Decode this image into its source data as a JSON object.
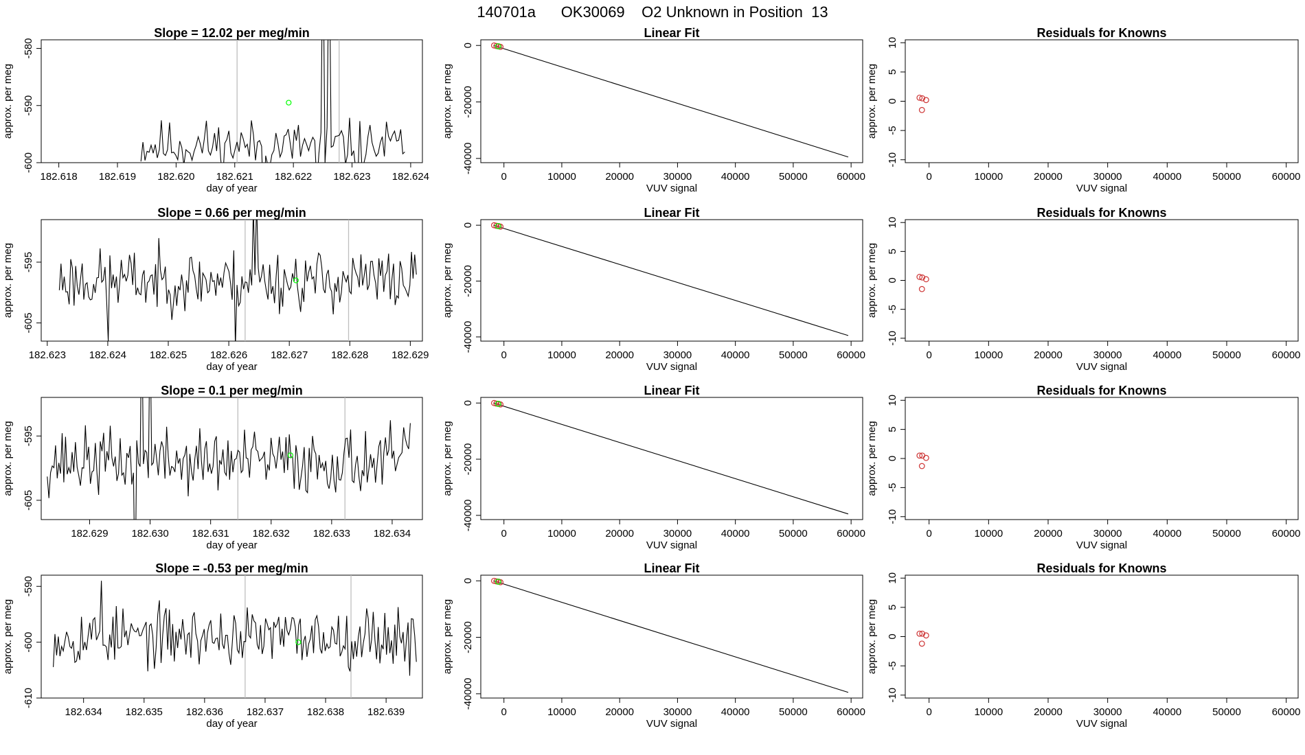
{
  "page_title": "140701a      OK30069    O2 Unknown in Position  13",
  "colors": {
    "trace": "#000000",
    "marker_line": "#bebebe",
    "known_point": "#cd3333",
    "unknown_point": "#00ff00",
    "fit_line": "#000000"
  },
  "chart_data": [
    {
      "type": "line",
      "row": 0,
      "title": "Slope =  12.02  per meg/min",
      "xlabel": "day of year",
      "ylabel": "approx. per meg",
      "xlim": [
        182.6177,
        182.6242
      ],
      "ylim": [
        -600,
        -578.5
      ],
      "xticks": [
        182.618,
        182.619,
        182.62,
        182.621,
        182.622,
        182.623,
        182.624
      ],
      "xtick_labels": [
        "182.618",
        "182.619",
        "182.620",
        "182.621",
        "182.622",
        "182.623",
        "182.624"
      ],
      "yticks": [
        -600,
        -590,
        -580
      ],
      "ytick_labels": [
        "-600",
        "-590",
        "-580"
      ],
      "x_start": 182.6194,
      "x_end": 182.6239,
      "n_points": 130,
      "base": -597,
      "noise": 2.2,
      "seed": 11,
      "spikes": [
        {
          "x": 182.6215,
          "y": -609
        },
        {
          "x": 182.6224,
          "y": -604
        },
        {
          "x": 182.6225,
          "y": -560
        },
        {
          "x": 182.62255,
          "y": -600
        },
        {
          "x": 182.6226,
          "y": -560
        },
        {
          "x": 182.6231,
          "y": -603
        }
      ],
      "marker_lines": [
        182.62104,
        182.62278
      ],
      "unknown_point": {
        "x": 182.62192,
        "y": -589.5
      }
    },
    {
      "type": "line",
      "row": 1,
      "title": "Slope =  0.66  per meg/min",
      "xlabel": "day of year",
      "ylabel": "approx. per meg",
      "xlim": [
        182.6229,
        182.6292
      ],
      "ylim": [
        -608,
        -588
      ],
      "xticks": [
        182.623,
        182.624,
        182.625,
        182.626,
        182.627,
        182.628,
        182.629
      ],
      "xtick_labels": [
        "182.623",
        "182.624",
        "182.625",
        "182.626",
        "182.627",
        "182.628",
        "182.629"
      ],
      "yticks": [
        -605,
        -595
      ],
      "ytick_labels": [
        "-605",
        "-595"
      ],
      "x_start": 182.6232,
      "x_end": 182.6291,
      "n_points": 220,
      "base": -598,
      "noise": 2.5,
      "seed": 23,
      "spikes": [
        {
          "x": 182.624,
          "y": -608
        },
        {
          "x": 182.6261,
          "y": -609
        },
        {
          "x": 182.6264,
          "y": -586
        },
        {
          "x": 182.62645,
          "y": -585
        }
      ],
      "marker_lines": [
        182.62627,
        182.62798
      ],
      "unknown_point": {
        "x": 182.62711,
        "y": -598
      }
    },
    {
      "type": "line",
      "row": 2,
      "title": "Slope =  0.1  per meg/min",
      "xlabel": "day of year",
      "ylabel": "approx. per meg",
      "xlim": [
        182.6282,
        182.6345
      ],
      "ylim": [
        -608,
        -589
      ],
      "xticks": [
        182.629,
        182.63,
        182.631,
        182.632,
        182.633,
        182.634
      ],
      "xtick_labels": [
        "182.629",
        "182.630",
        "182.631",
        "182.632",
        "182.633",
        "182.634"
      ],
      "yticks": [
        -605,
        -595
      ],
      "ytick_labels": [
        "-605",
        "-595"
      ],
      "x_start": 182.6283,
      "x_end": 182.6343,
      "n_points": 220,
      "base": -599,
      "noise": 2.5,
      "seed": 37,
      "spikes": [
        {
          "x": 182.62975,
          "y": -620
        },
        {
          "x": 182.62985,
          "y": -575
        },
        {
          "x": 182.63,
          "y": -577
        },
        {
          "x": 182.6343,
          "y": -593
        }
      ],
      "marker_lines": [
        182.63145,
        182.63322
      ],
      "unknown_point": {
        "x": 182.63232,
        "y": -598
      }
    },
    {
      "type": "line",
      "row": 3,
      "title": "Slope =  -0.53  per meg/min",
      "xlabel": "day of year",
      "ylabel": "approx. per meg",
      "xlim": [
        182.6333,
        182.6396
      ],
      "ylim": [
        -610,
        -588
      ],
      "xticks": [
        182.634,
        182.635,
        182.636,
        182.637,
        182.638,
        182.639
      ],
      "xtick_labels": [
        "182.634",
        "182.635",
        "182.636",
        "182.637",
        "182.638",
        "182.639"
      ],
      "yticks": [
        -610,
        -600,
        -590
      ],
      "ytick_labels": [
        "-610",
        "-600",
        "-590"
      ],
      "x_start": 182.6335,
      "x_end": 182.6395,
      "n_points": 220,
      "base": -599,
      "noise": 2.6,
      "seed": 53,
      "spikes": [
        {
          "x": 182.6343,
          "y": -589
        },
        {
          "x": 182.6394,
          "y": -606
        }
      ],
      "marker_lines": [
        182.63667,
        182.63842
      ],
      "unknown_point": {
        "x": 182.63755,
        "y": -600
      }
    },
    {
      "type": "scatter",
      "row": 0,
      "title": "Linear Fit",
      "xlabel": "VUV signal",
      "ylabel": "approx. per meg",
      "xlim": [
        -4000,
        62000
      ],
      "ylim": [
        -41500,
        2000
      ],
      "xticks": [
        0,
        10000,
        20000,
        30000,
        40000,
        50000,
        60000
      ],
      "xtick_labels": [
        "0",
        "10000",
        "20000",
        "30000",
        "40000",
        "50000",
        "60000"
      ],
      "yticks": [
        -40000,
        -20000,
        0
      ],
      "ytick_labels": [
        "-40000",
        "-20000",
        "0"
      ],
      "fit_line": {
        "x": [
          -1800,
          59500
        ],
        "y": [
          0,
          -39500
        ]
      },
      "knowns": [
        {
          "x": -1700,
          "y": 0
        },
        {
          "x": -1300,
          "y": -200
        },
        {
          "x": -900,
          "y": -300
        },
        {
          "x": -600,
          "y": -500
        }
      ],
      "unknown": {
        "x": -1000,
        "y": -300
      }
    },
    {
      "type": "scatter",
      "row": 1,
      "title": "Linear Fit",
      "xlabel": "VUV signal",
      "ylabel": "approx. per meg",
      "xlim": [
        -4000,
        62000
      ],
      "ylim": [
        -41500,
        2000
      ],
      "xticks": [
        0,
        10000,
        20000,
        30000,
        40000,
        50000,
        60000
      ],
      "xtick_labels": [
        "0",
        "10000",
        "20000",
        "30000",
        "40000",
        "50000",
        "60000"
      ],
      "yticks": [
        -40000,
        -20000,
        0
      ],
      "ytick_labels": [
        "-40000",
        "-20000",
        "0"
      ],
      "fit_line": {
        "x": [
          -1800,
          59500
        ],
        "y": [
          0,
          -39500
        ]
      },
      "knowns": [
        {
          "x": -1700,
          "y": 0
        },
        {
          "x": -1300,
          "y": -200
        },
        {
          "x": -900,
          "y": -300
        },
        {
          "x": -600,
          "y": -500
        }
      ],
      "unknown": {
        "x": -1000,
        "y": -300
      }
    },
    {
      "type": "scatter",
      "row": 2,
      "title": "Linear Fit",
      "xlabel": "VUV signal",
      "ylabel": "approx. per meg",
      "xlim": [
        -4000,
        62000
      ],
      "ylim": [
        -41500,
        2000
      ],
      "xticks": [
        0,
        10000,
        20000,
        30000,
        40000,
        50000,
        60000
      ],
      "xtick_labels": [
        "0",
        "10000",
        "20000",
        "30000",
        "40000",
        "50000",
        "60000"
      ],
      "yticks": [
        -40000,
        -20000,
        0
      ],
      "ytick_labels": [
        "-40000",
        "-20000",
        "0"
      ],
      "fit_line": {
        "x": [
          -1800,
          59500
        ],
        "y": [
          0,
          -39500
        ]
      },
      "knowns": [
        {
          "x": -1700,
          "y": 0
        },
        {
          "x": -1300,
          "y": -200
        },
        {
          "x": -900,
          "y": -300
        },
        {
          "x": -600,
          "y": -500
        }
      ],
      "unknown": {
        "x": -1000,
        "y": -300
      }
    },
    {
      "type": "scatter",
      "row": 3,
      "title": "Linear Fit",
      "xlabel": "VUV signal",
      "ylabel": "approx. per meg",
      "xlim": [
        -4000,
        62000
      ],
      "ylim": [
        -41500,
        2000
      ],
      "xticks": [
        0,
        10000,
        20000,
        30000,
        40000,
        50000,
        60000
      ],
      "xtick_labels": [
        "0",
        "10000",
        "20000",
        "30000",
        "40000",
        "50000",
        "60000"
      ],
      "yticks": [
        -40000,
        -20000,
        0
      ],
      "ytick_labels": [
        "-40000",
        "-20000",
        "0"
      ],
      "fit_line": {
        "x": [
          -1800,
          59500
        ],
        "y": [
          0,
          -39500
        ]
      },
      "knowns": [
        {
          "x": -1700,
          "y": 0
        },
        {
          "x": -1300,
          "y": -200
        },
        {
          "x": -900,
          "y": -300
        },
        {
          "x": -600,
          "y": -500
        }
      ],
      "unknown": {
        "x": -1000,
        "y": -300
      }
    },
    {
      "type": "scatter",
      "row": 0,
      "title": "Residuals for Knowns",
      "xlabel": "VUV signal",
      "ylabel": "approx. per meg",
      "xlim": [
        -4000,
        62000
      ],
      "ylim": [
        -10.5,
        10.5
      ],
      "xticks": [
        0,
        10000,
        20000,
        30000,
        40000,
        50000,
        60000
      ],
      "xtick_labels": [
        "0",
        "10000",
        "20000",
        "30000",
        "40000",
        "50000",
        "60000"
      ],
      "yticks": [
        -10,
        -5,
        0,
        5,
        10
      ],
      "ytick_labels": [
        "-10",
        "-5",
        "0",
        "5",
        "10"
      ],
      "knowns": [
        {
          "x": -1600,
          "y": 0.6
        },
        {
          "x": -1150,
          "y": 0.5
        },
        {
          "x": -500,
          "y": 0.2
        },
        {
          "x": -1200,
          "y": -1.5
        }
      ]
    },
    {
      "type": "scatter",
      "row": 1,
      "title": "Residuals for Knowns",
      "xlabel": "VUV signal",
      "ylabel": "approx. per meg",
      "xlim": [
        -4000,
        62000
      ],
      "ylim": [
        -10.5,
        10.5
      ],
      "xticks": [
        0,
        10000,
        20000,
        30000,
        40000,
        50000,
        60000
      ],
      "xtick_labels": [
        "0",
        "10000",
        "20000",
        "30000",
        "40000",
        "50000",
        "60000"
      ],
      "yticks": [
        -10,
        -5,
        0,
        5,
        10
      ],
      "ytick_labels": [
        "-10",
        "-5",
        "0",
        "5",
        "10"
      ],
      "knowns": [
        {
          "x": -1600,
          "y": 0.6
        },
        {
          "x": -1150,
          "y": 0.5
        },
        {
          "x": -500,
          "y": 0.2
        },
        {
          "x": -1200,
          "y": -1.5
        }
      ]
    },
    {
      "type": "scatter",
      "row": 2,
      "title": "Residuals for Knowns",
      "xlabel": "VUV signal",
      "ylabel": "approx. per meg",
      "xlim": [
        -4000,
        62000
      ],
      "ylim": [
        -10.5,
        10.5
      ],
      "xticks": [
        0,
        10000,
        20000,
        30000,
        40000,
        50000,
        60000
      ],
      "xtick_labels": [
        "0",
        "10000",
        "20000",
        "30000",
        "40000",
        "50000",
        "60000"
      ],
      "yticks": [
        -10,
        -5,
        0,
        5,
        10
      ],
      "ytick_labels": [
        "-10",
        "-5",
        "0",
        "5",
        "10"
      ],
      "knowns": [
        {
          "x": -1600,
          "y": 0.5
        },
        {
          "x": -1150,
          "y": 0.5
        },
        {
          "x": -500,
          "y": 0.1
        },
        {
          "x": -1200,
          "y": -1.3
        }
      ]
    },
    {
      "type": "scatter",
      "row": 3,
      "title": "Residuals for Knowns",
      "xlabel": "VUV signal",
      "ylabel": "approx. per meg",
      "xlim": [
        -4000,
        62000
      ],
      "ylim": [
        -10.5,
        10.5
      ],
      "xticks": [
        0,
        10000,
        20000,
        30000,
        40000,
        50000,
        60000
      ],
      "xtick_labels": [
        "0",
        "10000",
        "20000",
        "30000",
        "40000",
        "50000",
        "60000"
      ],
      "yticks": [
        -10,
        -5,
        0,
        5,
        10
      ],
      "ytick_labels": [
        "-10",
        "-5",
        "0",
        "5",
        "10"
      ],
      "knowns": [
        {
          "x": -1600,
          "y": 0.5
        },
        {
          "x": -1150,
          "y": 0.5
        },
        {
          "x": -500,
          "y": 0.2
        },
        {
          "x": -1200,
          "y": -1.2
        }
      ]
    }
  ]
}
